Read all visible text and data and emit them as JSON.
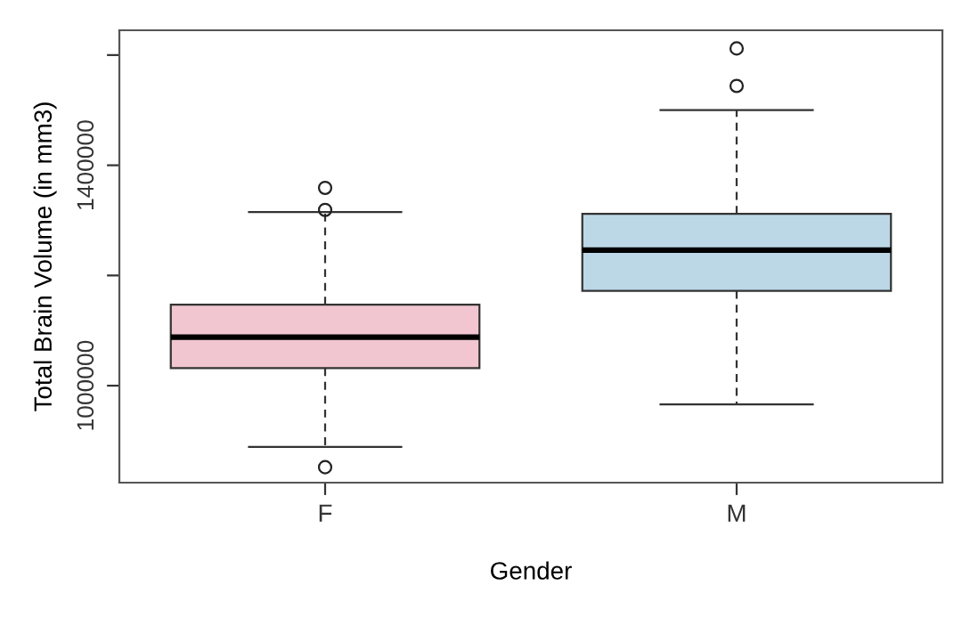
{
  "chart_data": {
    "type": "box",
    "xlabel": "Gender",
    "ylabel": "Total Brain Volume (in mm3)",
    "categories": [
      "F",
      "M"
    ],
    "colors": [
      "#f2c6d0",
      "#bcd8e7"
    ],
    "boxes": [
      {
        "low": 889000,
        "q1": 1032000,
        "median": 1088000,
        "q3": 1147000,
        "high": 1315000,
        "outliers": [
          1359000,
          1319000,
          852000
        ]
      },
      {
        "low": 966000,
        "q1": 1172000,
        "median": 1246000,
        "q3": 1312000,
        "high": 1500000,
        "outliers": [
          1612000,
          1544000
        ]
      }
    ],
    "ylim": [
      824000,
      1645000
    ],
    "yticks": [
      1000000,
      {
        "value": 1200000,
        "label": null
      },
      1400000,
      {
        "value": 1600000,
        "label": null
      }
    ],
    "grid": false,
    "legend": false
  }
}
